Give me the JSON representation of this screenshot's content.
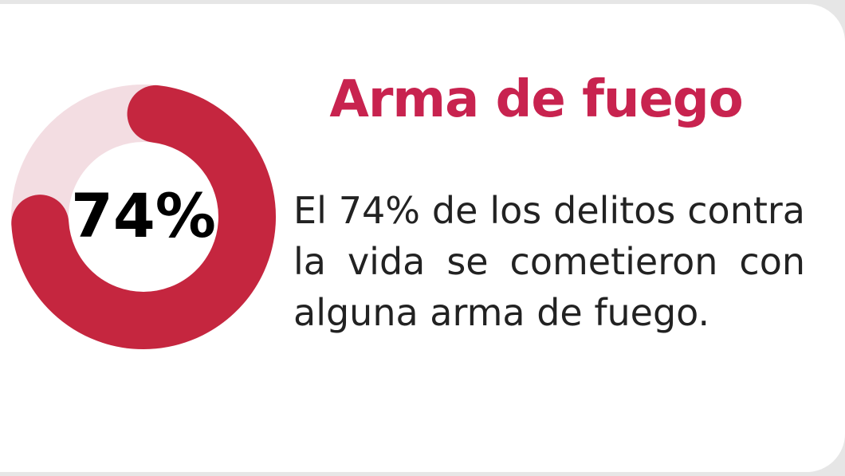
{
  "chart_data": {
    "type": "donut",
    "title": "Arma de fuego",
    "description": "El 74% de los delitos contra la vida se cometieron con alguna arma de fuego.",
    "values": [
      74
    ],
    "value_labels": [
      "74%"
    ],
    "color": "#c5263f",
    "track_color": "#f3dde2"
  }
}
